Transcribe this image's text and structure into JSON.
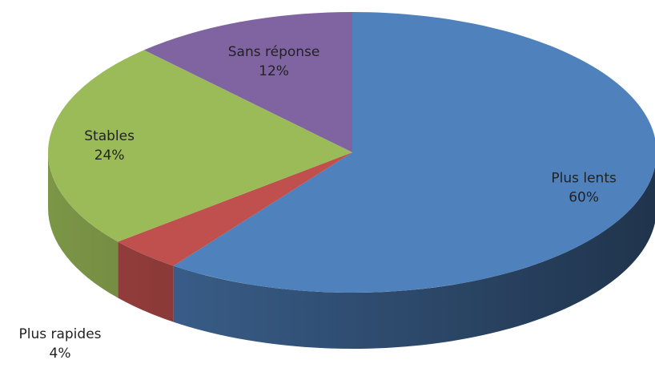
{
  "chart_data": {
    "type": "pie",
    "categories": [
      "Plus lents",
      "Plus rapides",
      "Stables",
      "Sans réponse"
    ],
    "values": [
      60,
      4,
      24,
      12
    ],
    "value_labels": [
      "60%",
      "4%",
      "24%",
      "12%"
    ],
    "colors": [
      "#4f81bd",
      "#c0504d",
      "#9bbb59",
      "#8064a2"
    ]
  }
}
